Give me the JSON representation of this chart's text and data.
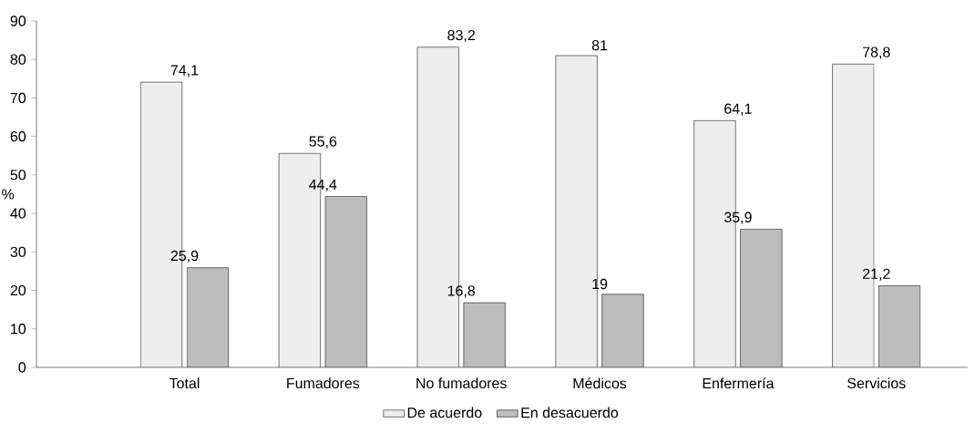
{
  "chart_data": {
    "type": "bar",
    "ylabel": "%",
    "categories": [
      "Total",
      "Fumadores",
      "No fumadores",
      "Médicos",
      "Enfermería",
      "Servicios"
    ],
    "series": [
      {
        "name": "De acuerdo",
        "color": "#ededed",
        "values": [
          74.1,
          55.6,
          83.2,
          81,
          64.1,
          78.8
        ],
        "value_labels": [
          "74,1",
          "55,6",
          "83,2",
          "81",
          "64,1",
          "78,8"
        ]
      },
      {
        "name": "En desacuerdo",
        "color": "#bdbdbd",
        "values": [
          25.9,
          44.4,
          16.8,
          19,
          35.9,
          21.2
        ],
        "value_labels": [
          "25,9",
          "44,4",
          "16,8",
          "19",
          "35,9",
          "21,2"
        ]
      }
    ],
    "ylim": [
      0,
      90
    ],
    "yticks": [
      0,
      10,
      20,
      30,
      40,
      50,
      60,
      70,
      80,
      90
    ],
    "legend": "bottom"
  }
}
